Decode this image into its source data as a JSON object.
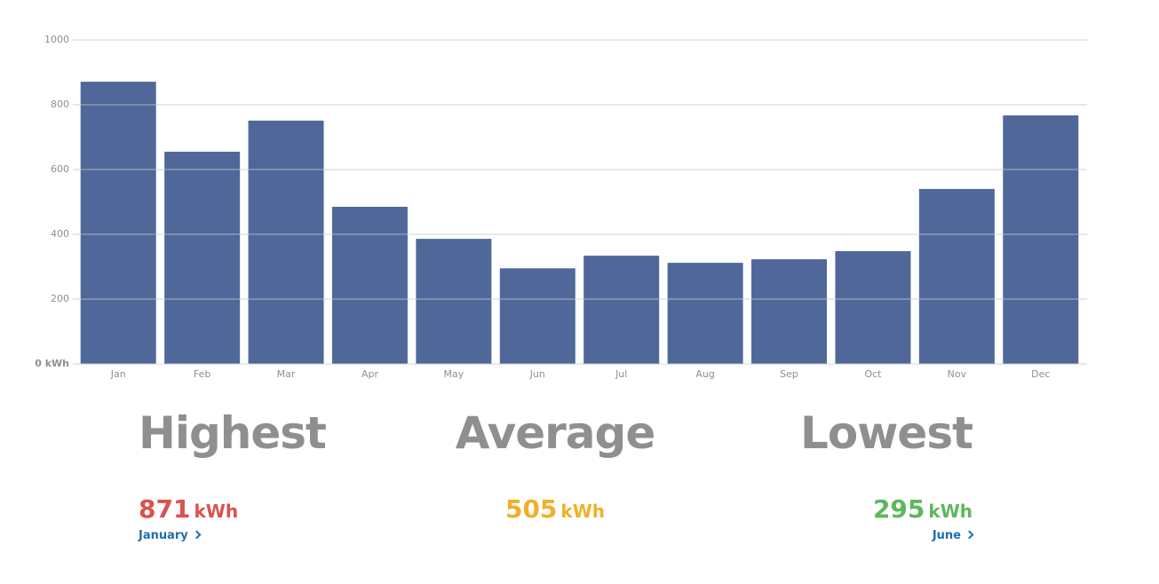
{
  "chart_data": {
    "type": "bar",
    "categories": [
      "Jan",
      "Feb",
      "Mar",
      "Apr",
      "May",
      "Jun",
      "Jul",
      "Aug",
      "Sep",
      "Oct",
      "Nov",
      "Dec"
    ],
    "values": [
      871,
      655,
      751,
      485,
      386,
      295,
      334,
      312,
      323,
      348,
      540,
      767
    ],
    "color": "#4f6899",
    "ylim": [
      0,
      1000
    ],
    "yticks": [
      {
        "value": 0,
        "label": "0 kWh"
      },
      200,
      400,
      600,
      800,
      1000
    ],
    "grid": true
  },
  "stats": [
    {
      "title": "Highest",
      "value": 871,
      "unit": "kWh",
      "color": "#d9534f",
      "link": "January"
    },
    {
      "title": "Average",
      "value": 505,
      "unit": "kWh",
      "color": "#f0b02a"
    },
    {
      "title": "Lowest",
      "value": 295,
      "unit": "kWh",
      "color": "#5cb85c",
      "link": "June"
    }
  ]
}
